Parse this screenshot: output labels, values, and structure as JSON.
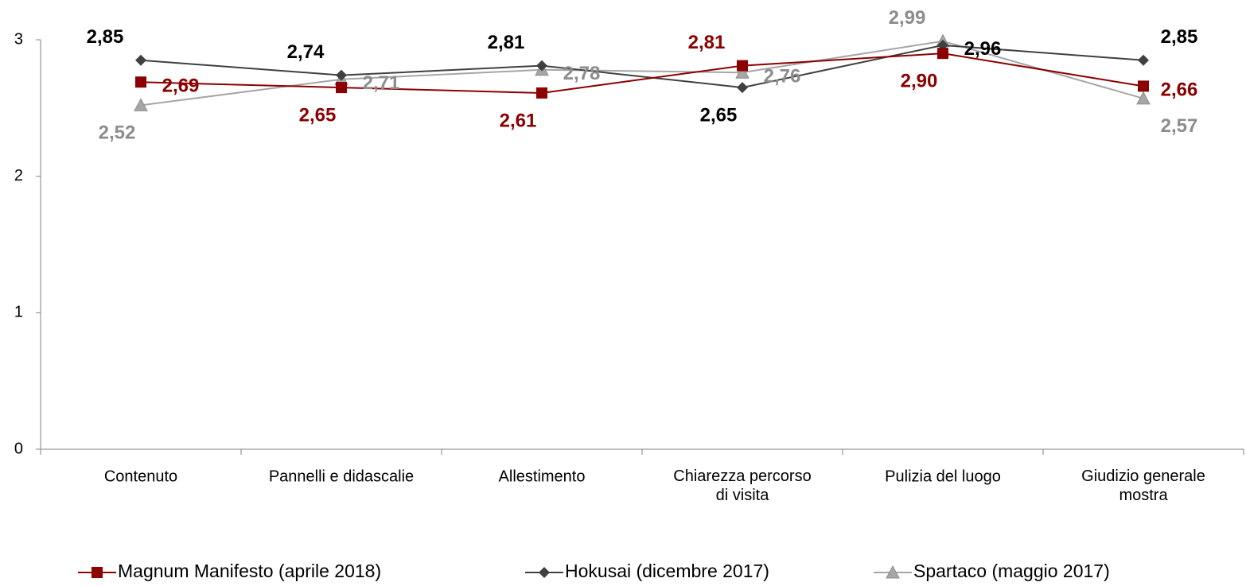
{
  "chart_data": {
    "type": "line",
    "categories": [
      "Contenuto",
      "Pannelli e didascalie",
      "Allestimento",
      "Chiarezza percorso\ndi visita",
      "Pulizia del luogo",
      "Giudizio generale\nmostra"
    ],
    "series": [
      {
        "name": "Magnum Manifesto (aprile 2018)",
        "color": "#8b0000",
        "label_color": "#8b0000",
        "marker": "square",
        "values": [
          2.69,
          2.65,
          2.61,
          2.81,
          2.9,
          2.66
        ],
        "value_labels": [
          "2,69",
          "2,65",
          "2,61",
          "2,81",
          "2,90",
          "2,66"
        ]
      },
      {
        "name": "Hokusai (dicembre 2017)",
        "color": "#404040",
        "label_color": "#000000",
        "marker": "diamond",
        "values": [
          2.85,
          2.74,
          2.81,
          2.65,
          2.96,
          2.85
        ],
        "value_labels": [
          "2,85",
          "2,74",
          "2,81",
          "2,65",
          "2,96",
          "2,85"
        ]
      },
      {
        "name": "Spartaco (maggio 2017)",
        "color": "#a6a6a6",
        "label_color": "#8c8c8c",
        "marker": "triangle",
        "values": [
          2.52,
          2.71,
          2.78,
          2.76,
          2.99,
          2.57
        ],
        "value_labels": [
          "2,52",
          "2,71",
          "2,78",
          "2,76",
          "2,99",
          "2,57"
        ]
      }
    ],
    "ylim": [
      0,
      3
    ],
    "yticks": [
      0,
      1,
      2,
      3
    ],
    "grid": false,
    "legend": "bottom"
  }
}
